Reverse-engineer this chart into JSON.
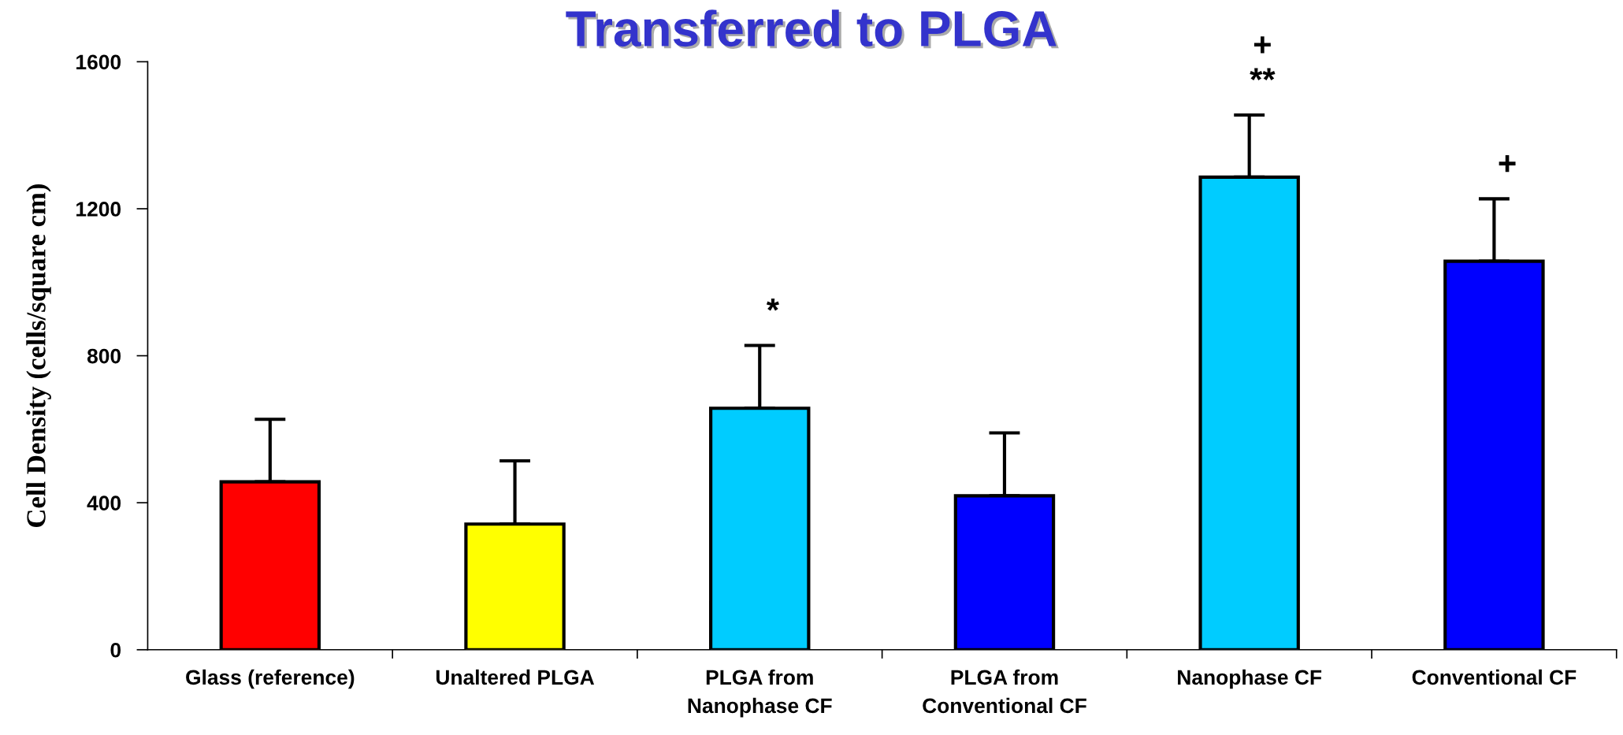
{
  "chart_data": {
    "type": "bar",
    "title": "Transferred to PLGA",
    "ylabel": "Cell Density (cells/square cm)",
    "categories": [
      "Glass (reference)",
      "Unaltered PLGA",
      "PLGA from\nNanophase CF",
      "PLGA from\nConventional CF",
      "Nanophase CF",
      "Conventional CF"
    ],
    "values": [
      457,
      342,
      657,
      419,
      1286,
      1057
    ],
    "colors": [
      "#ff0000",
      "#ffff00",
      "#00ccff",
      "#0000ff",
      "#00ccff",
      "#0000ff"
    ],
    "errors": [
      [
        457,
        627
      ],
      [
        342,
        514
      ],
      [
        657,
        828
      ],
      [
        419,
        590
      ],
      [
        1286,
        1455
      ],
      [
        1057,
        1227
      ]
    ],
    "ylim": [
      0,
      1600
    ],
    "yticks": [
      0,
      400,
      800,
      1200,
      1600
    ],
    "grid": false,
    "annotations": [
      {
        "text": "*",
        "x": "PLGA from\nNanophase CF",
        "y": 828
      },
      {
        "text": "**",
        "x": "Nanophase CF",
        "y": 1455
      },
      {
        "text": "+",
        "x": "Nanophase CF",
        "y": 1455
      },
      {
        "text": "+",
        "x": "Conventional CF",
        "y": 1227
      }
    ]
  }
}
